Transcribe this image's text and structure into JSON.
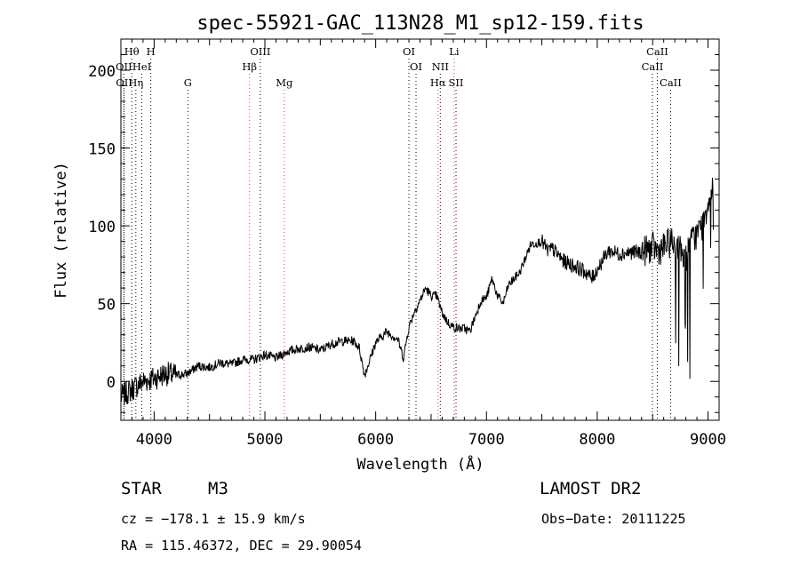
{
  "chart_data": {
    "type": "line",
    "title": "spec-55921-GAC_113N28_M1_sp12-159.fits",
    "xlabel": "Wavelength (Å)",
    "ylabel": "Flux (relative)",
    "xlim": [
      3700,
      9100
    ],
    "ylim": [
      -25,
      220
    ],
    "xticks": [
      4000,
      5000,
      6000,
      7000,
      8000,
      9000
    ],
    "yticks": [
      0,
      50,
      100,
      150,
      200
    ],
    "grid": false,
    "series": [
      {
        "x": [
          3700,
          3800,
          3900,
          4000,
          4100,
          4200,
          4300,
          4400,
          4500,
          4600,
          4700,
          4800,
          4900,
          5000,
          5100,
          5200,
          5300,
          5400,
          5500,
          5600,
          5700,
          5800,
          5850,
          5900,
          6000,
          6100,
          6200,
          6250,
          6300,
          6350,
          6400,
          6450,
          6500,
          6550,
          6600,
          6650,
          6700,
          6750,
          6800,
          6850,
          6900,
          6950,
          7000,
          7050,
          7100,
          7150,
          7200,
          7300,
          7400,
          7500,
          7550,
          7600,
          7700,
          7800,
          7900,
          7950,
          8000,
          8100,
          8200,
          8300,
          8400,
          8500,
          8550,
          8600,
          8650,
          8700,
          8750,
          8800,
          8850,
          8900,
          8950,
          9000,
          9050
        ],
        "y": [
          -10,
          -5,
          0,
          2,
          5,
          4,
          5,
          10,
          9,
          12,
          11,
          14,
          14,
          17,
          15,
          19,
          21,
          22,
          20,
          24,
          26,
          26,
          22,
          4,
          25,
          32,
          27,
          15,
          35,
          45,
          52,
          60,
          55,
          55,
          44,
          38,
          35,
          34,
          34,
          32,
          42,
          52,
          54,
          66,
          55,
          50,
          62,
          70,
          88,
          90,
          84,
          85,
          77,
          74,
          70,
          66,
          72,
          84,
          82,
          83,
          83,
          86,
          84,
          86,
          89,
          89,
          84,
          80,
          90,
          95,
          100,
          115,
          130
        ]
      }
    ],
    "spectral_lines": [
      {
        "label": "Hθ",
        "wavelength": 3798,
        "row": 1,
        "color": "#000000"
      },
      {
        "label": "H",
        "wavelength": 3970,
        "row": 1,
        "color": "#000000"
      },
      {
        "label": "OII",
        "wavelength": 3727,
        "row": 2,
        "color": "#000000"
      },
      {
        "label": "HeI",
        "wavelength": 3889,
        "row": 2,
        "color": "#000000"
      },
      {
        "label": "OII",
        "wavelength": 3729,
        "row": 3,
        "color": "#000000"
      },
      {
        "label": "Hη",
        "wavelength": 3835,
        "row": 3,
        "color": "#000000"
      },
      {
        "label": "G",
        "wavelength": 4305,
        "row": 3,
        "color": "#000000"
      },
      {
        "label": "OIII",
        "wavelength": 4959,
        "row": 1,
        "color": "#000000"
      },
      {
        "label": "Hβ",
        "wavelength": 4861,
        "row": 2,
        "color": "#ff3030"
      },
      {
        "label": "Mg",
        "wavelength": 5175,
        "row": 3,
        "color": "#ff3030"
      },
      {
        "label": "OI",
        "wavelength": 6300,
        "row": 1,
        "color": "#000000"
      },
      {
        "label": "OI",
        "wavelength": 6364,
        "row": 2,
        "color": "#000000"
      },
      {
        "label": "Li",
        "wavelength": 6708,
        "row": 1,
        "color": "#ff3030"
      },
      {
        "label": "NII",
        "wavelength": 6583,
        "row": 2,
        "color": "#000000"
      },
      {
        "label": "Hα",
        "wavelength": 6563,
        "row": 3,
        "color": "#ff3030"
      },
      {
        "label": "SII",
        "wavelength": 6725,
        "row": 3,
        "color": "#000000"
      },
      {
        "label": "CaII",
        "wavelength": 8542,
        "row": 1,
        "color": "#000000"
      },
      {
        "label": "CaII",
        "wavelength": 8498,
        "row": 2,
        "color": "#000000"
      },
      {
        "label": "CaII",
        "wavelength": 8662,
        "row": 3,
        "color": "#000000"
      }
    ]
  },
  "info": {
    "object_type": "STAR",
    "subclass": "M3",
    "survey": "LAMOST DR2",
    "redshift": "cz = −178.1 ± 15.9 km/s",
    "obs_date": "Obs−Date: 20111225",
    "coords": "RA = 115.46372, DEC =  29.90054"
  }
}
